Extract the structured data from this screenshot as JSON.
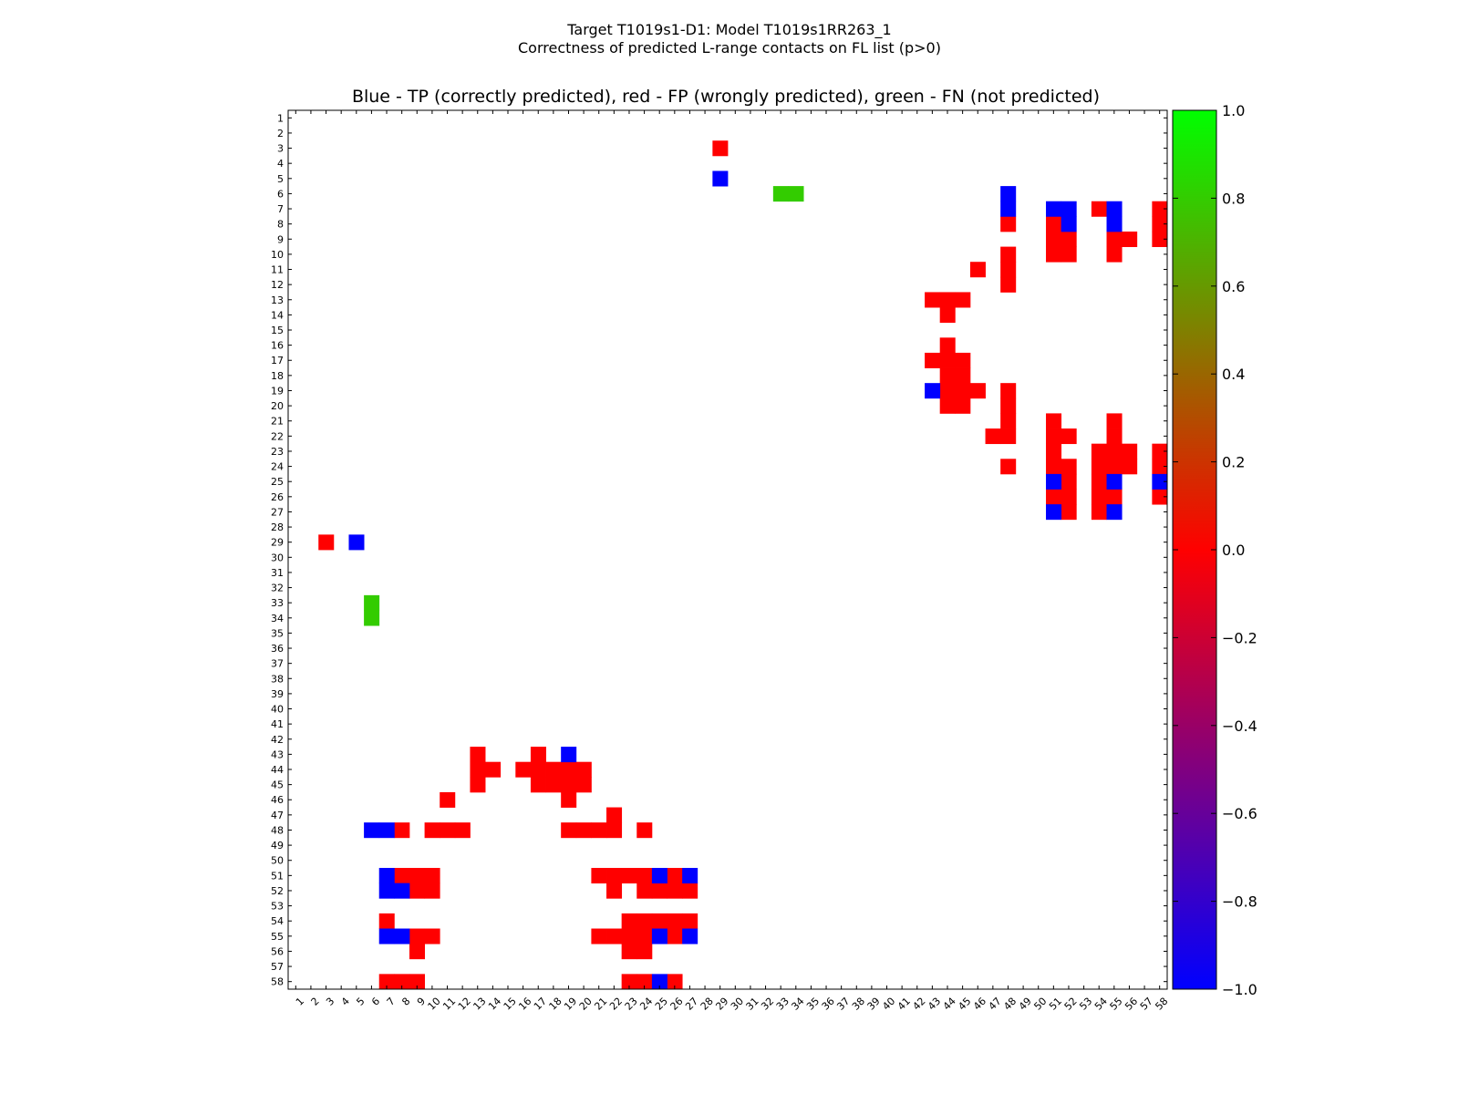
{
  "chart_data": {
    "type": "heatmap",
    "suptitle_line1": "Target T1019s1-D1: Model T1019s1RR263_1",
    "suptitle_line2": "Correctness of predicted L-range contacts on FL list (p>0)",
    "title": "Blue - TP (correctly predicted), red - FP (wrongly predicted), green - FN (not predicted)",
    "n": 58,
    "x_ticks": [
      1,
      2,
      3,
      4,
      5,
      6,
      7,
      8,
      9,
      10,
      11,
      12,
      13,
      14,
      15,
      16,
      17,
      18,
      19,
      20,
      21,
      22,
      23,
      24,
      25,
      26,
      27,
      28,
      29,
      30,
      31,
      32,
      33,
      34,
      35,
      36,
      37,
      38,
      39,
      40,
      41,
      42,
      43,
      44,
      45,
      46,
      47,
      48,
      49,
      50,
      51,
      52,
      53,
      54,
      55,
      56,
      57,
      58
    ],
    "y_ticks": [
      1,
      2,
      3,
      4,
      5,
      6,
      7,
      8,
      9,
      10,
      11,
      12,
      13,
      14,
      15,
      16,
      17,
      18,
      19,
      20,
      21,
      22,
      23,
      24,
      25,
      26,
      27,
      28,
      29,
      30,
      31,
      32,
      33,
      34,
      35,
      36,
      37,
      38,
      39,
      40,
      41,
      42,
      43,
      44,
      45,
      46,
      47,
      48,
      49,
      50,
      51,
      52,
      53,
      54,
      55,
      56,
      57,
      58
    ],
    "colors": {
      "tp": "#0000ff",
      "fp": "#ff0000",
      "fn": "#33cc00",
      "bg": "#ffffff"
    },
    "legend": {
      "tp": "TP (correctly predicted)",
      "fp": "FP (wrongly predicted)",
      "fn": "FN (not predicted)"
    },
    "colorbar": {
      "range": [
        -1.0,
        1.0
      ],
      "ticks": [
        "1.0",
        "0.8",
        "0.6",
        "0.4",
        "0.2",
        "0.0",
        "−0.2",
        "−0.4",
        "−0.6",
        "−0.8",
        "−1.0"
      ],
      "stops": [
        {
          "value": -1.0,
          "color": "#0000ff"
        },
        {
          "value": -0.5,
          "color": "#800080"
        },
        {
          "value": 0.0,
          "color": "#ff0000"
        },
        {
          "value": 0.5,
          "color": "#808000"
        },
        {
          "value": 1.0,
          "color": "#00ff00"
        }
      ]
    },
    "upper_tp": [
      [
        5,
        29
      ],
      [
        6,
        48
      ],
      [
        7,
        48
      ],
      [
        7,
        51
      ],
      [
        7,
        52
      ],
      [
        8,
        52
      ],
      [
        7,
        55
      ],
      [
        8,
        55
      ],
      [
        19,
        43
      ],
      [
        25,
        51
      ],
      [
        25,
        55
      ],
      [
        25,
        58
      ],
      [
        27,
        51
      ],
      [
        27,
        55
      ]
    ],
    "upper_fp": [
      [
        3,
        29
      ],
      [
        7,
        54
      ],
      [
        7,
        58
      ],
      [
        8,
        48
      ],
      [
        8,
        51
      ],
      [
        8,
        58
      ],
      [
        9,
        51
      ],
      [
        9,
        52
      ],
      [
        9,
        55
      ],
      [
        9,
        56
      ],
      [
        9,
        58
      ],
      [
        10,
        48
      ],
      [
        10,
        51
      ],
      [
        10,
        52
      ],
      [
        10,
        55
      ],
      [
        11,
        46
      ],
      [
        11,
        48
      ],
      [
        12,
        48
      ],
      [
        13,
        43
      ],
      [
        13,
        44
      ],
      [
        13,
        45
      ],
      [
        14,
        44
      ],
      [
        16,
        44
      ],
      [
        17,
        43
      ],
      [
        17,
        44
      ],
      [
        17,
        45
      ],
      [
        18,
        44
      ],
      [
        18,
        45
      ],
      [
        19,
        44
      ],
      [
        19,
        45
      ],
      [
        19,
        46
      ],
      [
        19,
        48
      ],
      [
        20,
        44
      ],
      [
        20,
        45
      ],
      [
        20,
        48
      ],
      [
        21,
        48
      ],
      [
        21,
        51
      ],
      [
        21,
        55
      ],
      [
        22,
        47
      ],
      [
        22,
        48
      ],
      [
        22,
        51
      ],
      [
        22,
        52
      ],
      [
        22,
        55
      ],
      [
        23,
        51
      ],
      [
        23,
        54
      ],
      [
        23,
        55
      ],
      [
        23,
        56
      ],
      [
        23,
        58
      ],
      [
        24,
        48
      ],
      [
        24,
        51
      ],
      [
        24,
        52
      ],
      [
        24,
        54
      ],
      [
        24,
        55
      ],
      [
        24,
        56
      ],
      [
        24,
        58
      ],
      [
        25,
        52
      ],
      [
        25,
        54
      ],
      [
        26,
        51
      ],
      [
        26,
        52
      ],
      [
        26,
        54
      ],
      [
        26,
        55
      ],
      [
        26,
        58
      ],
      [
        27,
        52
      ],
      [
        27,
        54
      ]
    ],
    "upper_fn": [
      [
        6,
        33
      ],
      [
        6,
        34
      ]
    ]
  }
}
